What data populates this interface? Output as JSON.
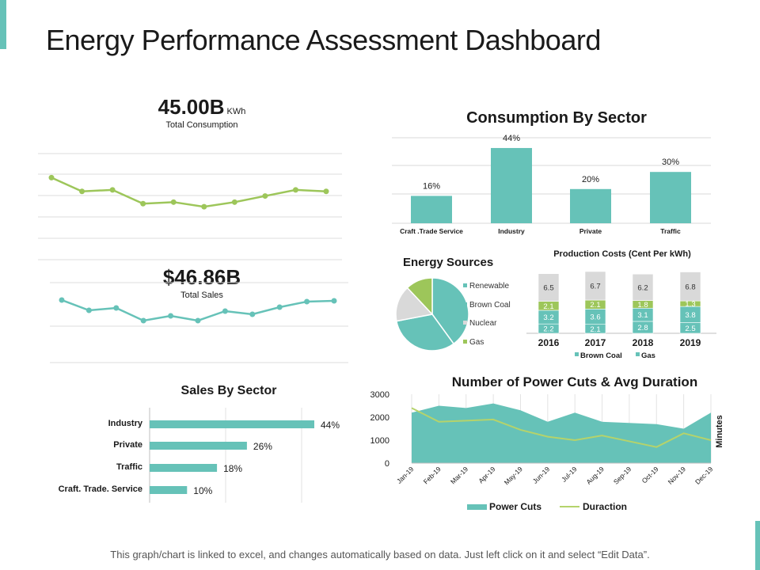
{
  "page": {
    "title": "Energy Performance Assessment Dashboard",
    "footer": "This graph/chart is linked to excel, and changes automatically based on data.  Just left click on it and select “Edit Data”."
  },
  "colors": {
    "teal": "#66c2b8",
    "green": "#9dc65a",
    "gray": "#d9d9d9"
  },
  "kpis": {
    "consumption": {
      "value": "45.00B",
      "unit": "KWh",
      "label": "Total Consumption"
    },
    "sales": {
      "value": "$46.86B",
      "label": "Total Sales"
    }
  },
  "chart_data": [
    {
      "id": "consumption-trend",
      "type": "line",
      "values": [
        72,
        63,
        64,
        55,
        56,
        53,
        56,
        60,
        64,
        63
      ],
      "ylim": [
        20,
        82
      ]
    },
    {
      "id": "sales-trend",
      "type": "line",
      "values": [
        76,
        63,
        66,
        50,
        56,
        50,
        62,
        58,
        67,
        74,
        75
      ],
      "ylim": [
        0,
        100
      ]
    },
    {
      "id": "consumption-by-sector",
      "type": "bar",
      "title": "Consumption By Sector",
      "categories": [
        "Craft .Trade Service",
        "Industry",
        "Private",
        "Traffic"
      ],
      "values": [
        16,
        44,
        20,
        30
      ],
      "labels": [
        "16%",
        "44%",
        "20%",
        "30%"
      ],
      "ylim": [
        0,
        50
      ]
    },
    {
      "id": "energy-sources",
      "type": "pie",
      "title": "Energy Sources",
      "labels": [
        "Renewable",
        "Brown Coal",
        "Nuclear",
        "Gas"
      ],
      "values": [
        40,
        32,
        16,
        12
      ],
      "colors": [
        "#66c2b8",
        "#66c2b8",
        "#d9d9d9",
        "#9dc65a"
      ]
    },
    {
      "id": "production-costs",
      "type": "bar",
      "stacked": true,
      "title": "Production Costs (Cent Per kWh)",
      "categories": [
        "2016",
        "2017",
        "2018",
        "2019"
      ],
      "series": [
        {
          "name": "Gas",
          "values": [
            2.2,
            2.1,
            2.8,
            2.5
          ],
          "labels": [
            "2.2",
            "2.1",
            "2.8",
            "2.5"
          ],
          "color": "#66c2b8"
        },
        {
          "name": "Brown Coal",
          "values": [
            3.2,
            3.6,
            3.1,
            3.8
          ],
          "labels": [
            "3.2",
            "3.6",
            "3.1",
            "3.8"
          ],
          "color": "#66c2b8"
        },
        {
          "name": "Renewable",
          "values": [
            2.1,
            2.1,
            1.8,
            1.3
          ],
          "labels": [
            "2.1",
            "2.1",
            "1.8",
            "1.3"
          ],
          "color": "#9dc65a"
        },
        {
          "name": "Nuclear",
          "values": [
            6.5,
            6.7,
            6.2,
            6.8
          ],
          "labels": [
            "6.5",
            "6.7",
            "6.2",
            "6.8"
          ],
          "color": "#d9d9d9"
        }
      ],
      "legend": [
        "Brown Coal",
        "Gas"
      ]
    },
    {
      "id": "sales-by-sector",
      "type": "bar",
      "orientation": "horizontal",
      "title": "Sales By Sector",
      "categories": [
        "Industry",
        "Private",
        "Traffic",
        "Craft. Trade. Service"
      ],
      "values": [
        44,
        26,
        18,
        10
      ],
      "labels": [
        "44%",
        "26%",
        "18%",
        "10%"
      ],
      "xlim": [
        0,
        50
      ]
    },
    {
      "id": "power-cuts",
      "type": "area",
      "title": "Number of Power Cuts & Avg Duration",
      "categories": [
        "Jan-19",
        "Feb-19",
        "Mar-19",
        "Apr-19",
        "May-19",
        "Jun-19",
        "Jul-19",
        "Aug-19",
        "Sep-19",
        "Oct-19",
        "Nov-19",
        "Dec-19"
      ],
      "series": [
        {
          "name": "Power Cuts",
          "type": "area",
          "values": [
            2200,
            2500,
            2400,
            2600,
            2300,
            1800,
            2200,
            1800,
            1750,
            1700,
            1500,
            2200
          ]
        },
        {
          "name": "Duraction",
          "type": "line",
          "values": [
            2400,
            1800,
            1850,
            1900,
            1450,
            1150,
            1000,
            1200,
            950,
            700,
            1300,
            1000
          ]
        }
      ],
      "yticks": [
        "3000",
        "2000",
        "1000",
        "0"
      ],
      "ylim": [
        0,
        3000
      ],
      "ylabel": "Minutes",
      "legend": [
        "Power Cuts",
        "Duraction"
      ]
    }
  ]
}
